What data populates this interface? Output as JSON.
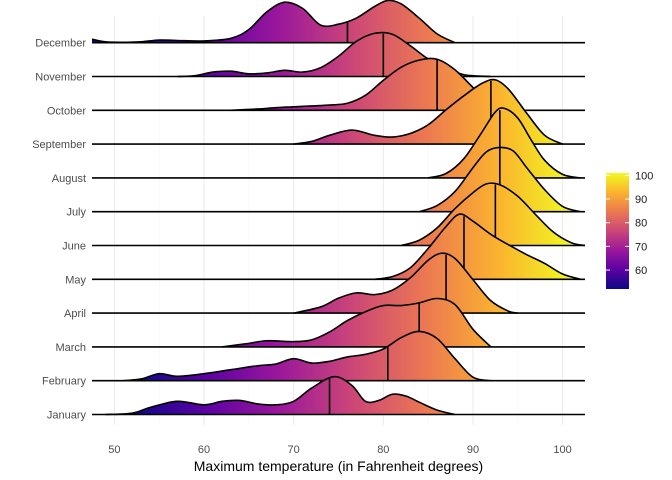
{
  "chart_data": {
    "type": "ridgeline",
    "xlabel": "Maximum temperature (in Fahrenheit degrees)",
    "ylabel": "",
    "xlim": [
      47.5,
      102.5
    ],
    "x_ticks": [
      50,
      60,
      70,
      80,
      90,
      100
    ],
    "x_tick_labels": [
      "50",
      "60",
      "70",
      "80",
      "90",
      "100"
    ],
    "grid": true,
    "legend_position": "right",
    "color_scale": {
      "name": "plasma",
      "min": 52,
      "max": 101,
      "ticks": [
        60,
        70,
        80,
        90,
        100
      ],
      "tick_labels": [
        "60",
        "70",
        "80",
        "90",
        "100"
      ],
      "stops": [
        "#0d0887",
        "#5b02a3",
        "#9a179b",
        "#cb4678",
        "#eb7852",
        "#fbb32f",
        "#f0f921"
      ]
    },
    "categories": [
      "January",
      "February",
      "March",
      "April",
      "May",
      "June",
      "July",
      "August",
      "September",
      "October",
      "November",
      "December"
    ],
    "series": [
      {
        "name": "January",
        "median": 74,
        "x": [
          49,
          52,
          54,
          57,
          60,
          62,
          64,
          66,
          68,
          70,
          72,
          74.5,
          76.5,
          78,
          79.5,
          81,
          82.5,
          84,
          86,
          88
        ],
        "density": [
          0,
          0.03,
          0.16,
          0.3,
          0.22,
          0.3,
          0.32,
          0.24,
          0.22,
          0.3,
          0.6,
          0.86,
          0.66,
          0.3,
          0.32,
          0.46,
          0.42,
          0.28,
          0.1,
          0
        ]
      },
      {
        "name": "February",
        "median": 80.5,
        "x": [
          51,
          53,
          55,
          57,
          60,
          63,
          66,
          68,
          70,
          72,
          74,
          76,
          78,
          80,
          82,
          84,
          86,
          88,
          90,
          92
        ],
        "density": [
          0,
          0.04,
          0.16,
          0.1,
          0.16,
          0.25,
          0.34,
          0.38,
          0.5,
          0.4,
          0.44,
          0.54,
          0.6,
          0.72,
          0.98,
          1.12,
          0.96,
          0.5,
          0.08,
          0
        ]
      },
      {
        "name": "March",
        "median": 84,
        "x": [
          62,
          65,
          67,
          70,
          72,
          74,
          76,
          78,
          80,
          82,
          84,
          86,
          88,
          90,
          92
        ],
        "density": [
          0,
          0.08,
          0.14,
          0.12,
          0.16,
          0.34,
          0.6,
          0.8,
          0.94,
          0.94,
          1.0,
          1.1,
          0.96,
          0.4,
          0
        ]
      },
      {
        "name": "April",
        "median": 87,
        "x": [
          70,
          73,
          75,
          77,
          79,
          81,
          83,
          85,
          86.5,
          88,
          90,
          92,
          94,
          95
        ],
        "density": [
          0,
          0.14,
          0.34,
          0.46,
          0.42,
          0.52,
          0.8,
          1.2,
          1.36,
          1.24,
          0.76,
          0.28,
          0.04,
          0
        ]
      },
      {
        "name": "May",
        "median": 89,
        "x": [
          79,
          81,
          83,
          85,
          87,
          88.5,
          90,
          92,
          94,
          96,
          98,
          100,
          102
        ],
        "density": [
          0,
          0.06,
          0.26,
          0.7,
          1.2,
          1.48,
          1.32,
          1.02,
          0.78,
          0.56,
          0.36,
          0.12,
          0
        ]
      },
      {
        "name": "June",
        "median": 92.5,
        "x": [
          82,
          84,
          86,
          88,
          90,
          91.5,
          93,
          95,
          97,
          99,
          101,
          102.5
        ],
        "density": [
          0,
          0.12,
          0.4,
          0.84,
          1.2,
          1.4,
          1.38,
          1.12,
          0.7,
          0.3,
          0.06,
          0
        ]
      },
      {
        "name": "July",
        "median": 93,
        "x": [
          84,
          86,
          88,
          90,
          91.5,
          93,
          94.5,
          96,
          98,
          100,
          102
        ],
        "density": [
          0,
          0.14,
          0.46,
          1.0,
          1.36,
          1.46,
          1.38,
          1.0,
          0.5,
          0.12,
          0
        ]
      },
      {
        "name": "August",
        "median": 93,
        "x": [
          85,
          87,
          89,
          91,
          92.5,
          93.5,
          95,
          96.5,
          98,
          100,
          102
        ],
        "density": [
          0,
          0.1,
          0.44,
          1.04,
          1.5,
          1.58,
          1.36,
          0.86,
          0.4,
          0.08,
          0
        ]
      },
      {
        "name": "September",
        "median": 92,
        "x": [
          70,
          72,
          74,
          76.5,
          79,
          81,
          83,
          85,
          87,
          89,
          91,
          92.5,
          94,
          96,
          98,
          100
        ],
        "density": [
          0,
          0.06,
          0.2,
          0.32,
          0.2,
          0.16,
          0.24,
          0.44,
          0.78,
          1.1,
          1.38,
          1.46,
          1.24,
          0.7,
          0.2,
          0
        ]
      },
      {
        "name": "October",
        "median": 86,
        "x": [
          63,
          66,
          68,
          70,
          72,
          74,
          76,
          78,
          80,
          82,
          84,
          86,
          88,
          90,
          92,
          94
        ],
        "density": [
          0,
          0.03,
          0.06,
          0.08,
          0.1,
          0.12,
          0.16,
          0.34,
          0.68,
          0.98,
          1.14,
          1.16,
          0.92,
          0.52,
          0.14,
          0
        ]
      },
      {
        "name": "November",
        "median": 80,
        "x": [
          57,
          59,
          61,
          63,
          65,
          67,
          69,
          71,
          73,
          75,
          77,
          79,
          81,
          83,
          85,
          87,
          89,
          92
        ],
        "density": [
          0,
          0.02,
          0.1,
          0.12,
          0.06,
          0.08,
          0.14,
          0.1,
          0.2,
          0.46,
          0.8,
          0.98,
          0.96,
          0.7,
          0.4,
          0.2,
          0.04,
          0
        ]
      },
      {
        "name": "December",
        "median": 76,
        "x": [
          47.5,
          49,
          51,
          53,
          55,
          57,
          60,
          63,
          65,
          67,
          69,
          71,
          73,
          75,
          77,
          79,
          80.5,
          82,
          84,
          86,
          88
        ],
        "density": [
          0.08,
          0.02,
          0.01,
          0.02,
          0.06,
          0.05,
          0.04,
          0.1,
          0.3,
          0.7,
          0.92,
          0.78,
          0.4,
          0.42,
          0.56,
          0.82,
          0.96,
          0.88,
          0.56,
          0.2,
          0
        ]
      }
    ]
  }
}
